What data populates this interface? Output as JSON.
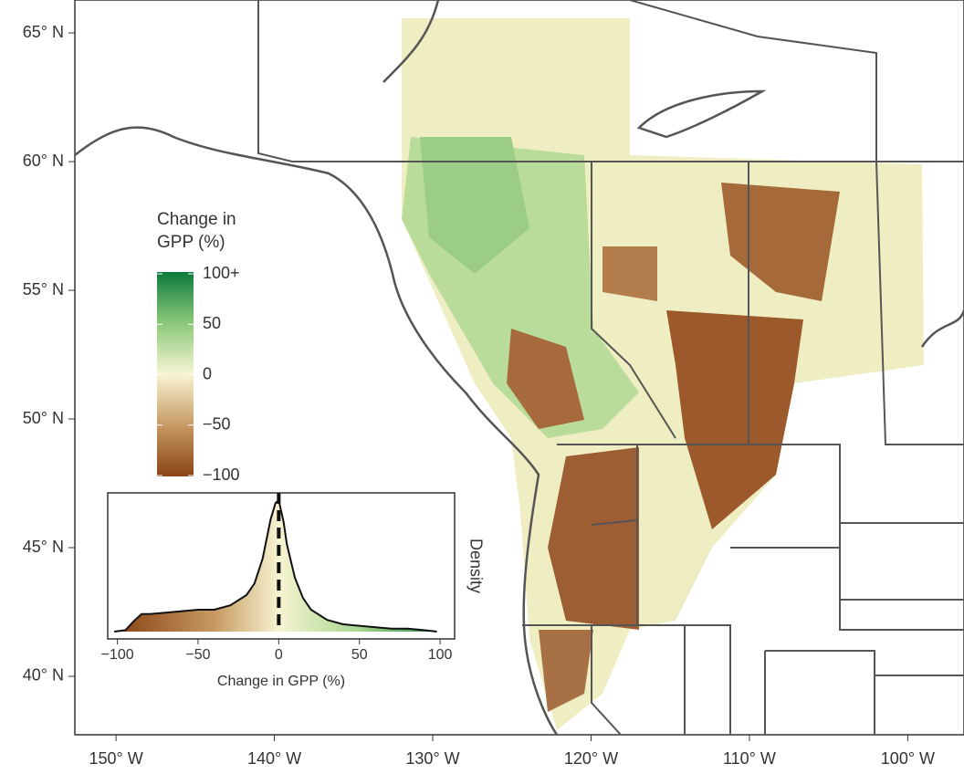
{
  "map": {
    "lat_range": [
      37.73,
      66.28
    ],
    "lon_range": [
      -152.6,
      -96.45
    ],
    "lat_ticks": [
      {
        "value": 65,
        "label": "65° N"
      },
      {
        "value": 60,
        "label": "60° N"
      },
      {
        "value": 55,
        "label": "55° N"
      },
      {
        "value": 50,
        "label": "50° N"
      },
      {
        "value": 45,
        "label": "45° N"
      },
      {
        "value": 40,
        "label": "40° N"
      }
    ],
    "lon_ticks": [
      {
        "value": -150,
        "label": "150° W"
      },
      {
        "value": -140,
        "label": "140° W"
      },
      {
        "value": -130,
        "label": "130° W"
      },
      {
        "value": -120,
        "label": "120° W"
      },
      {
        "value": -110,
        "label": "110° W"
      },
      {
        "value": -100,
        "label": "100° W"
      }
    ],
    "legend": {
      "title": "Change in GPP (%)",
      "range": [
        -100,
        100
      ],
      "ticks": [
        {
          "value": 100,
          "label": "100+"
        },
        50,
        0,
        {
          "value": -50,
          "label": "−50"
        },
        {
          "value": -100,
          "label": "−100"
        }
      ]
    }
  },
  "inset": {
    "type": "area",
    "x_label": "Change in GPP (%)",
    "y_label": "Density",
    "xlim": [
      -106,
      109
    ],
    "ylim": [
      0,
      1
    ],
    "xticks": [
      {
        "value": -100,
        "label": "−100"
      },
      {
        "value": -50,
        "label": "−50"
      },
      0,
      50,
      100
    ],
    "reference_line": 0,
    "x": [
      -102,
      -95,
      -90,
      -85,
      -80,
      -70,
      -60,
      -50,
      -40,
      -30,
      -20,
      -15,
      -10,
      -5,
      -2,
      0,
      3,
      5,
      10,
      15,
      20,
      30,
      40,
      50,
      60,
      70,
      80,
      90,
      98
    ],
    "values": [
      0.05,
      0.06,
      0.12,
      0.17,
      0.17,
      0.18,
      0.19,
      0.2,
      0.2,
      0.23,
      0.3,
      0.38,
      0.55,
      0.82,
      0.93,
      0.95,
      0.8,
      0.65,
      0.42,
      0.28,
      0.2,
      0.13,
      0.1,
      0.09,
      0.08,
      0.07,
      0.07,
      0.06,
      0.05
    ]
  }
}
